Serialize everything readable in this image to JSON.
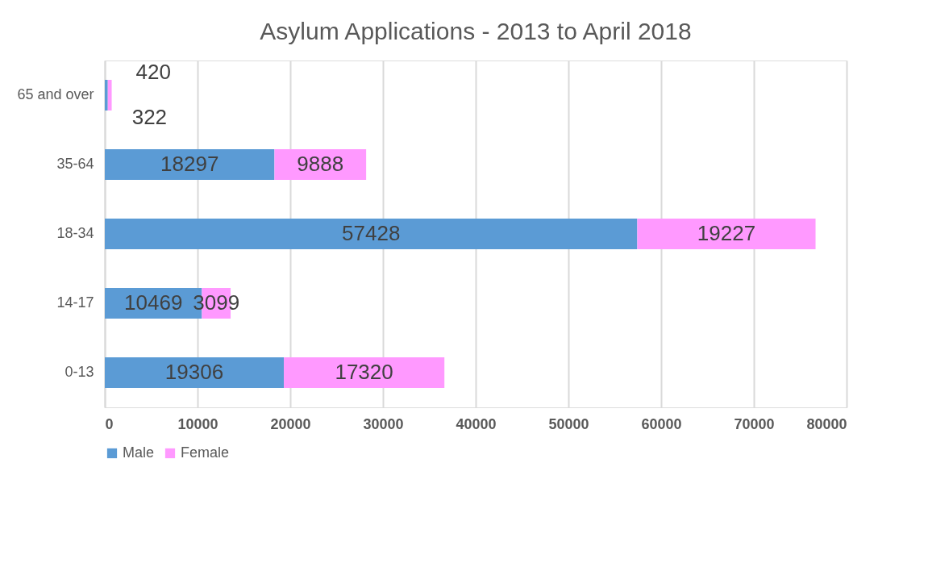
{
  "chart_data": {
    "type": "bar",
    "orientation": "horizontal",
    "stacked": true,
    "title": "Asylum Applications  - 2013 to April 2018",
    "categories": [
      "65 and over",
      "35-64",
      "18-34",
      "14-17",
      "0-13"
    ],
    "series": [
      {
        "name": "Male",
        "color": "#5b9bd5",
        "values": [
          322,
          18297,
          57428,
          10469,
          19306
        ]
      },
      {
        "name": "Female",
        "color": "#ff99ff",
        "values": [
          420,
          9888,
          19227,
          3099,
          17320
        ]
      }
    ],
    "xlim": [
      0,
      80000
    ],
    "xticks": [
      0,
      10000,
      20000,
      30000,
      40000,
      50000,
      60000,
      70000,
      80000
    ],
    "grid": "x",
    "legend": "bottom",
    "data_labels": true
  }
}
